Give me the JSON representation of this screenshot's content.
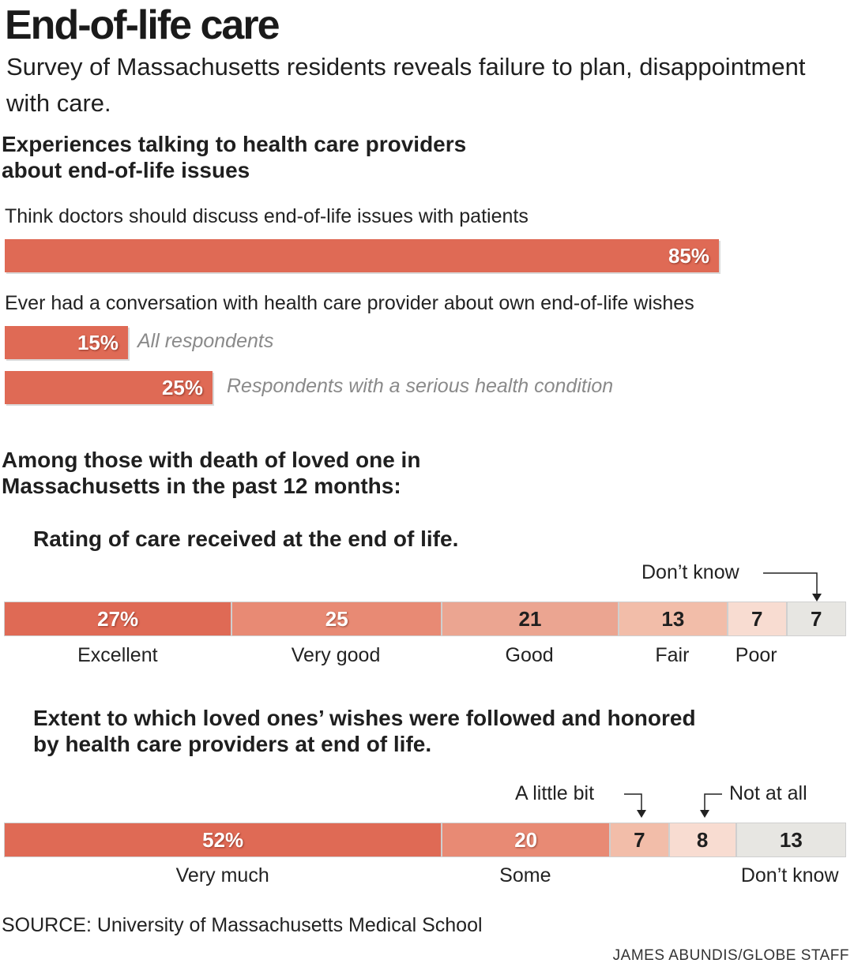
{
  "header": {
    "title": "End-of-life care",
    "subtitle": "Survey of Massachusetts residents reveals failure to plan, disappointment with care."
  },
  "section1": {
    "title": "Experiences talking to health care providers about end-of-life issues",
    "q1_label": "Think doctors should discuss end-of-life issues with patients",
    "q2_label": "Ever had a conversation with health care provider about own end-of-life wishes"
  },
  "section2": {
    "title": "Among those with death of loved one in Massachusetts in the past 12 months:"
  },
  "colors": {
    "strong": "#df6a55",
    "medium": "#e88a74",
    "soft": "#eba591",
    "light": "#f2bda9",
    "pale": "#f8dcd1",
    "neutral": "#e7e6e2"
  },
  "chart_data": [
    {
      "type": "bar",
      "orientation": "horizontal",
      "categories": [
        "Think doctors should discuss end-of-life issues with patients"
      ],
      "values": [
        85
      ],
      "value_labels": [
        "85%"
      ],
      "xlim": [
        0,
        100
      ]
    },
    {
      "type": "bar",
      "orientation": "horizontal",
      "categories": [
        "All respondents",
        "Respondents with a serious health condition"
      ],
      "values": [
        15,
        25
      ],
      "value_labels": [
        "15%",
        "25%"
      ],
      "xlim": [
        0,
        100
      ]
    },
    {
      "type": "stacked-bar",
      "title": "Rating of care received at the end of life.",
      "categories": [
        "Excellent",
        "Very good",
        "Good",
        "Fair",
        "Poor",
        "Don’t know"
      ],
      "values": [
        27,
        25,
        21,
        13,
        7,
        7
      ],
      "value_labels": [
        "27%",
        "25",
        "21",
        "13",
        "7",
        "7"
      ]
    },
    {
      "type": "stacked-bar",
      "title": "Extent to which loved ones’ wishes were followed and honored by health care providers at end of life.",
      "categories": [
        "Very much",
        "Some",
        "A little bit",
        "Not at all",
        "Don’t know"
      ],
      "values": [
        52,
        20,
        7,
        8,
        13
      ],
      "value_labels": [
        "52%",
        "20",
        "7",
        "8",
        "13"
      ]
    }
  ],
  "footer": {
    "source": "SOURCE: University of Massachusetts Medical School",
    "credit": "JAMES ABUNDIS/GLOBE STAFF"
  }
}
